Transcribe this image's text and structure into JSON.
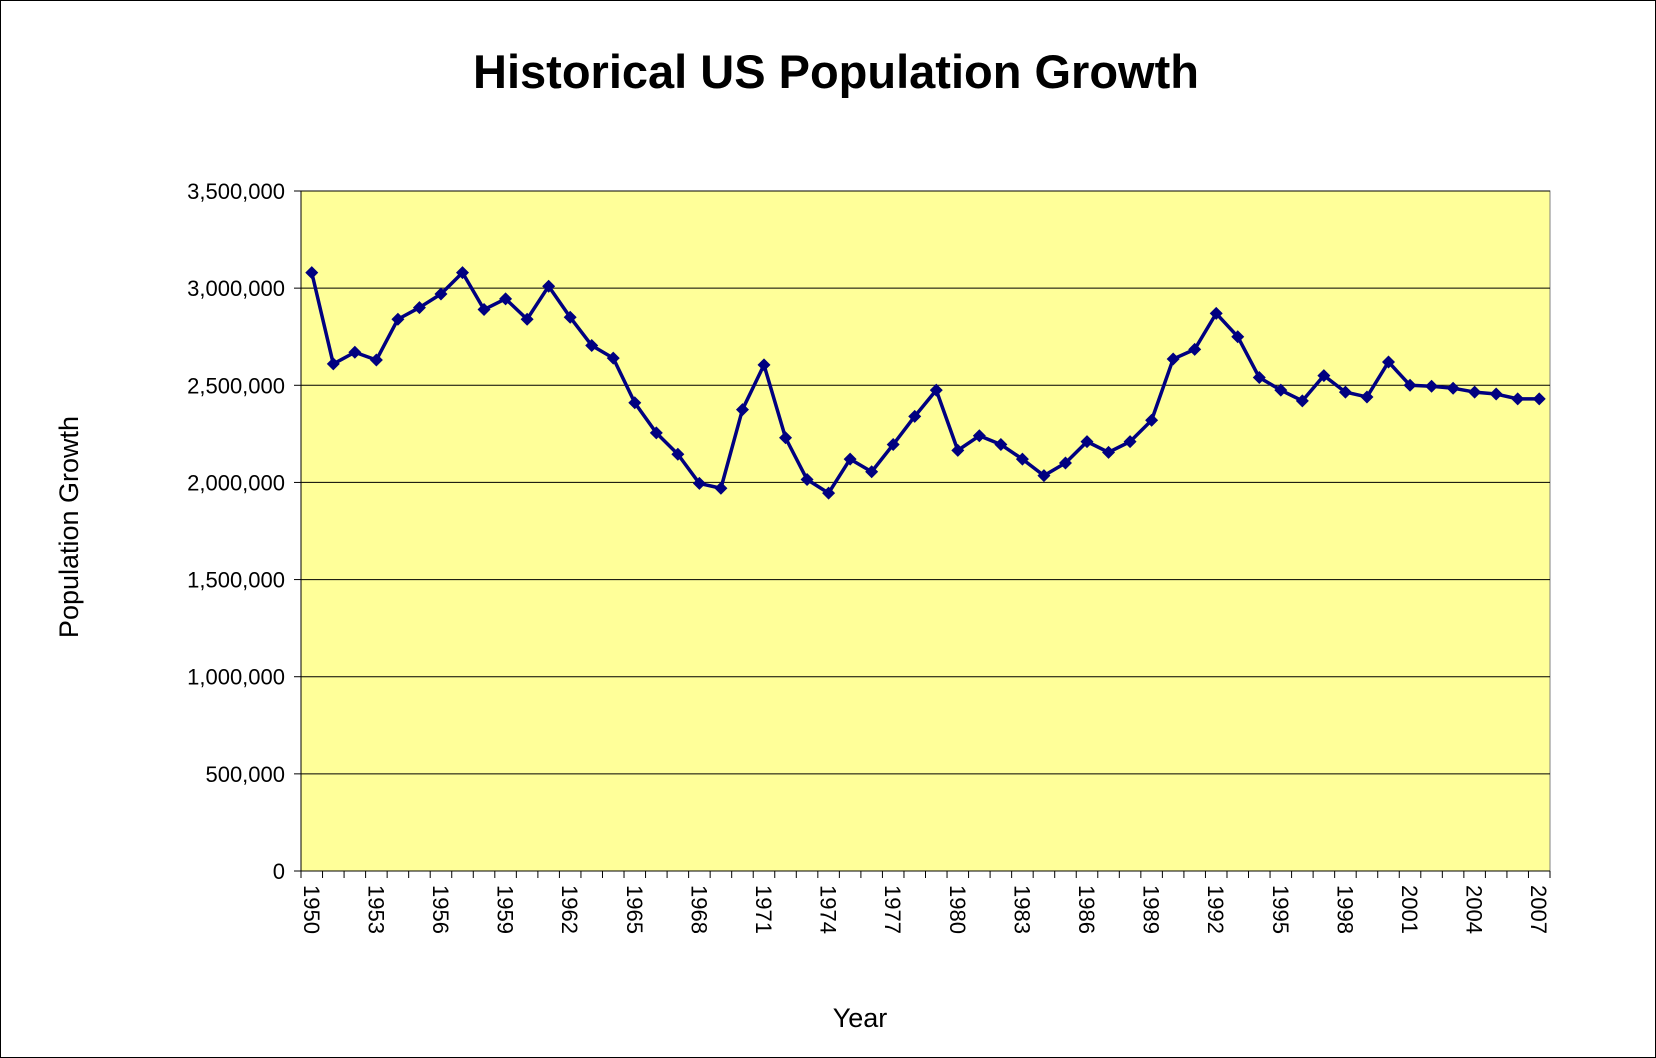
{
  "chart_data": {
    "type": "line",
    "title": "Historical US Population Growth",
    "x_label": "Year",
    "y_label": "Population Growth",
    "categories": [
      "1950",
      null,
      null,
      "1953",
      null,
      null,
      "1956",
      null,
      null,
      "1959",
      null,
      null,
      "1962",
      null,
      null,
      "1965",
      null,
      null,
      "1968",
      null,
      null,
      "1971",
      null,
      null,
      "1974",
      null,
      null,
      "1977",
      null,
      null,
      "1980",
      null,
      null,
      "1983",
      null,
      null,
      "1986",
      null,
      null,
      "1989",
      null,
      null,
      "1992",
      null,
      null,
      "1995",
      null,
      null,
      "1998",
      null,
      null,
      "2001",
      null,
      null,
      "2004",
      null,
      null,
      "2007"
    ],
    "values": [
      3080000,
      2610000,
      2670000,
      2630000,
      2840000,
      2900000,
      2970000,
      3080000,
      2890000,
      2945000,
      2840000,
      3010000,
      2850000,
      2705000,
      2640000,
      2410000,
      2255000,
      2145000,
      1995000,
      1970000,
      2375000,
      2605000,
      2230000,
      2015000,
      1945000,
      2120000,
      2055000,
      2195000,
      2340000,
      2475000,
      2165000,
      2240000,
      2195000,
      2120000,
      2035000,
      2100000,
      2210000,
      2155000,
      2210000,
      2320000,
      2635000,
      2685000,
      2870000,
      2750000,
      2540000,
      2475000,
      2420000,
      2550000,
      2465000,
      2440000,
      2620000,
      2500000,
      2495000,
      2485000,
      2465000,
      2455000,
      2430000,
      2430000
    ],
    "color": "#000080",
    "plot_background": "#ffff99",
    "ylim": [
      0,
      3500000
    ],
    "yticks": [
      0,
      {
        "value": 500000,
        "label": "500,000"
      },
      {
        "value": 1000000,
        "label": "1,000,000"
      },
      {
        "value": 1500000,
        "label": "1,500,000"
      },
      {
        "value": 2000000,
        "label": "2,000,000"
      },
      {
        "value": 2500000,
        "label": "2,500,000"
      },
      {
        "value": 3000000,
        "label": "3,000,000"
      },
      {
        "value": 3500000,
        "label": "3,500,000"
      }
    ],
    "grid": true
  }
}
